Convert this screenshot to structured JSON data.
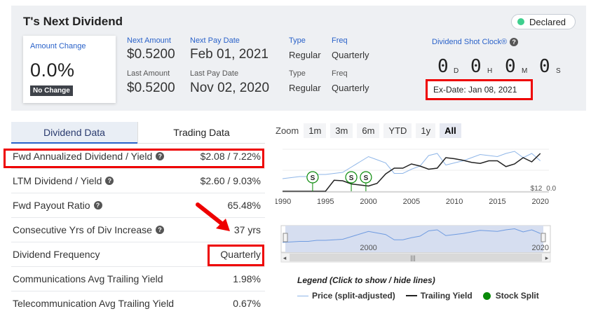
{
  "header": {
    "title": "T's Next Dividend",
    "status": "Declared"
  },
  "amount_change": {
    "label": "Amount Change",
    "value": "0.0%",
    "badge": "No Change"
  },
  "next": {
    "amount_label": "Next Amount",
    "amount": "$0.5200",
    "pay_date_label": "Next Pay Date",
    "pay_date": "Feb 01, 2021",
    "type_label": "Type",
    "type": "Regular",
    "freq_label": "Freq",
    "freq": "Quarterly"
  },
  "last": {
    "amount_label": "Last Amount",
    "amount": "$0.5200",
    "pay_date_label": "Last Pay Date",
    "pay_date": "Nov 02, 2020",
    "type_label": "Type",
    "type": "Regular",
    "freq_label": "Freq",
    "freq": "Quarterly"
  },
  "shot_clock": {
    "label": "Dividend Shot Clock®",
    "days": "0",
    "days_unit": "D",
    "hours": "0",
    "hours_unit": "H",
    "minutes": "0",
    "minutes_unit": "M",
    "seconds": "0",
    "seconds_unit": "S",
    "ex_date": "Ex-Date: Jan 08, 2021"
  },
  "tabs": [
    "Dividend Data",
    "Trading Data"
  ],
  "rows": [
    {
      "label": "Fwd Annualized Dividend / Yield",
      "value": "$2.08 / 7.22%",
      "help": true
    },
    {
      "label": "LTM Dividend / Yield",
      "value": "$2.60 / 9.03%",
      "help": true
    },
    {
      "label": "Fwd Payout Ratio",
      "value": "65.48%",
      "help": true
    },
    {
      "label": "Consecutive Yrs of Div Increase",
      "value": "37 yrs",
      "help": true
    },
    {
      "label": "Dividend Frequency",
      "value": "Quarterly",
      "help": false
    },
    {
      "label": "Communications Avg Trailing Yield",
      "value": "1.98%",
      "help": false
    },
    {
      "label": "Telecommunication Avg Trailing Yield",
      "value": "0.67%",
      "help": false
    }
  ],
  "zoom": {
    "label": "Zoom",
    "options": [
      "1m",
      "3m",
      "6m",
      "YTD",
      "1y",
      "All"
    ],
    "selected": "All"
  },
  "chart_data": {
    "type": "line",
    "x_ticks": [
      "1990",
      "1995",
      "2000",
      "2005",
      "2010",
      "2015",
      "2020"
    ],
    "navigator_ticks": [
      "2000",
      "2020"
    ],
    "right_axis_labels": [
      "$12",
      "0.0%"
    ],
    "split_marker": "S",
    "series": [
      {
        "name": "Price (split-adjusted)",
        "color": "#8fb6e8",
        "x": [
          1990,
          1991,
          1992,
          1993,
          1994,
          1995,
          1996,
          1997,
          1998,
          1999,
          2000,
          2001,
          2002,
          2003,
          2004,
          2005,
          2006,
          2007,
          2008,
          2009,
          2010,
          2011,
          2012,
          2013,
          2014,
          2015,
          2016,
          2017,
          2018,
          2019,
          2020
        ],
        "y": [
          12,
          13,
          14,
          14,
          16,
          16,
          17,
          18,
          23,
          28,
          33,
          30,
          27,
          17,
          17,
          21,
          24,
          34,
          36,
          25,
          27,
          29,
          32,
          35,
          34,
          33,
          36,
          38,
          32,
          36,
          29
        ]
      },
      {
        "name": "Trailing Yield",
        "color": "#222222",
        "x": [
          1990,
          1991,
          1992,
          1993,
          1994,
          1995,
          1996,
          1997,
          1998,
          1999,
          2000,
          2001,
          2002,
          2003,
          2004,
          2005,
          2006,
          2007,
          2008,
          2009,
          2010,
          2011,
          2012,
          2013,
          2014,
          2015,
          2016,
          2017,
          2018,
          2019,
          2020
        ],
        "y": [
          0,
          0,
          0,
          0,
          0,
          0,
          2.1,
          2.0,
          1.4,
          1.2,
          1.0,
          1.5,
          3.3,
          4.4,
          4.4,
          5.2,
          4.8,
          4.2,
          4.4,
          6.4,
          6.2,
          5.9,
          5.5,
          5.3,
          5.8,
          5.8,
          4.7,
          5.2,
          6.4,
          5.6,
          7.2
        ]
      }
    ],
    "stock_splits": [
      1993.5,
      1998.0,
      1999.7
    ],
    "legend": {
      "title": "Legend (Click to show / hide lines)",
      "items": [
        "Price (split-adjusted)",
        "Trailing Yield",
        "Stock Split"
      ]
    }
  }
}
